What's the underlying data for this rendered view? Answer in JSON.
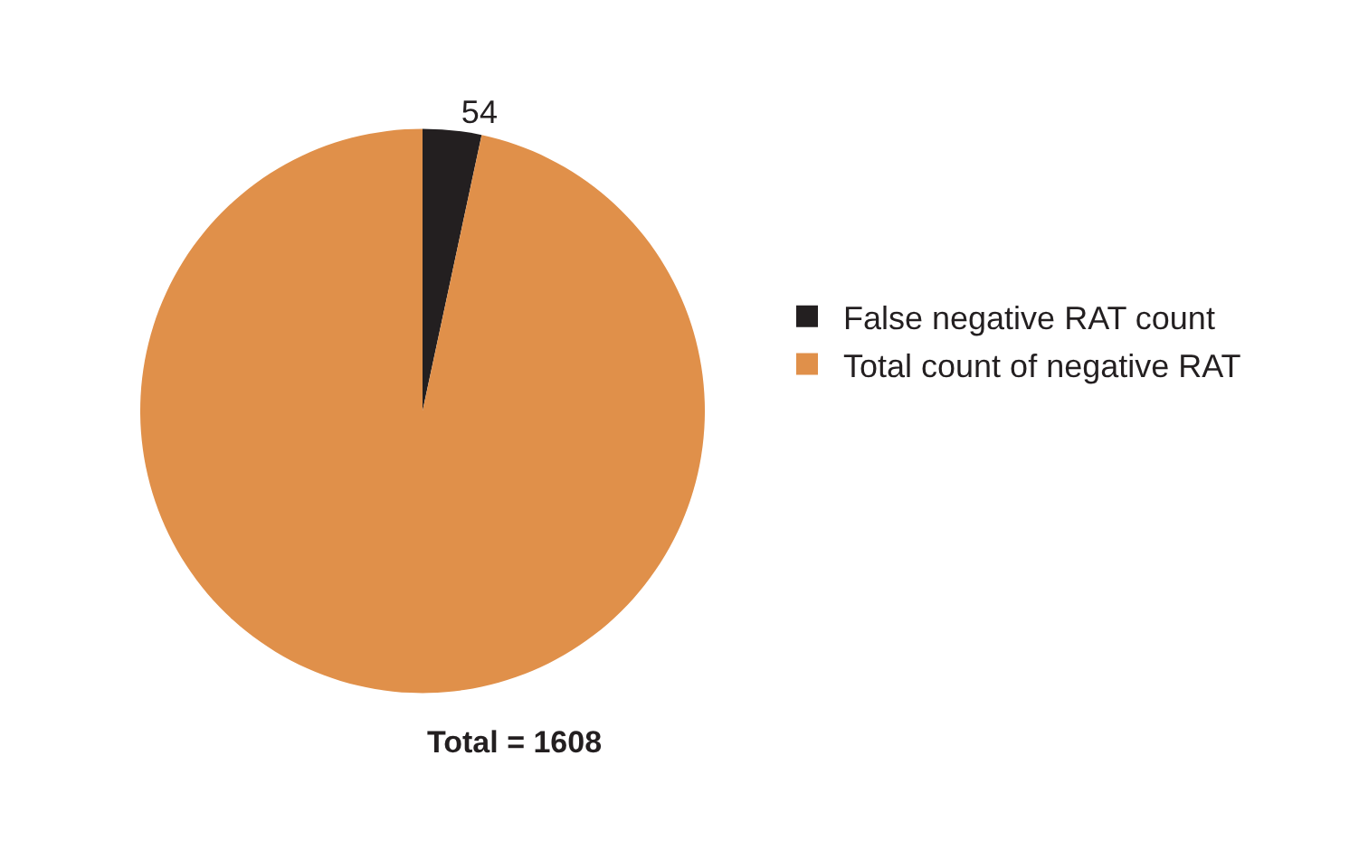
{
  "chart_data": {
    "type": "pie",
    "categories": [
      "False negative RAT count",
      "Total count of negative RAT"
    ],
    "values": [
      54,
      1554
    ],
    "colors": [
      "#231f20",
      "#e0904a"
    ],
    "value_labels": [
      "54",
      null
    ],
    "legend": "right",
    "annotations": [
      "Total = 1608"
    ]
  }
}
